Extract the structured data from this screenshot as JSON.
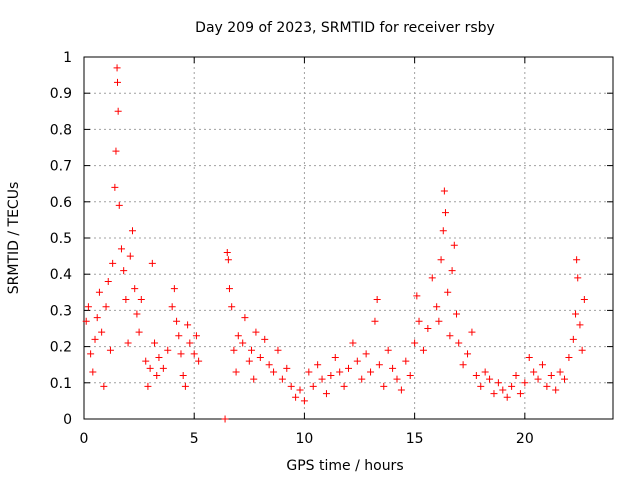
{
  "chart_data": {
    "type": "scatter",
    "title": "Day 209 of 2023, SRMTID for receiver rsby",
    "xlabel": "GPS time / hours",
    "ylabel": "SRMTID / TECUs",
    "xlim": [
      0,
      24
    ],
    "ylim": [
      0,
      1
    ],
    "xticks": [
      0,
      5,
      10,
      15,
      20
    ],
    "yticks": [
      0,
      0.1,
      0.2,
      0.3,
      0.4,
      0.5,
      0.6,
      0.7,
      0.8,
      0.9,
      1
    ],
    "xtick_labels": [
      "0",
      "5",
      "10",
      "15",
      "20"
    ],
    "ytick_labels": [
      "0",
      "0.1",
      "0.2",
      "0.3",
      "0.4",
      "0.5",
      "0.6",
      "0.7",
      "0.8",
      "0.9",
      "1"
    ],
    "grid": true,
    "marker": "plus",
    "color": "#ff0000",
    "points": [
      [
        0.1,
        0.27
      ],
      [
        0.2,
        0.31
      ],
      [
        0.3,
        0.18
      ],
      [
        0.4,
        0.13
      ],
      [
        0.5,
        0.22
      ],
      [
        0.6,
        0.28
      ],
      [
        0.7,
        0.35
      ],
      [
        0.8,
        0.24
      ],
      [
        0.9,
        0.09
      ],
      [
        1.0,
        0.31
      ],
      [
        1.1,
        0.38
      ],
      [
        1.2,
        0.19
      ],
      [
        1.3,
        0.43
      ],
      [
        1.4,
        0.64
      ],
      [
        1.45,
        0.74
      ],
      [
        1.5,
        0.97
      ],
      [
        1.52,
        0.93
      ],
      [
        1.55,
        0.85
      ],
      [
        1.6,
        0.59
      ],
      [
        1.7,
        0.47
      ],
      [
        1.8,
        0.41
      ],
      [
        1.9,
        0.33
      ],
      [
        2.0,
        0.21
      ],
      [
        2.1,
        0.45
      ],
      [
        2.2,
        0.52
      ],
      [
        2.3,
        0.36
      ],
      [
        2.4,
        0.29
      ],
      [
        2.5,
        0.24
      ],
      [
        2.6,
        0.33
      ],
      [
        2.8,
        0.16
      ],
      [
        2.9,
        0.09
      ],
      [
        3.0,
        0.14
      ],
      [
        3.1,
        0.43
      ],
      [
        3.2,
        0.21
      ],
      [
        3.3,
        0.12
      ],
      [
        3.4,
        0.17
      ],
      [
        3.6,
        0.14
      ],
      [
        3.8,
        0.19
      ],
      [
        4.0,
        0.31
      ],
      [
        4.1,
        0.36
      ],
      [
        4.2,
        0.27
      ],
      [
        4.3,
        0.23
      ],
      [
        4.4,
        0.18
      ],
      [
        4.5,
        0.12
      ],
      [
        4.6,
        0.09
      ],
      [
        4.7,
        0.26
      ],
      [
        4.8,
        0.21
      ],
      [
        5.0,
        0.18
      ],
      [
        5.1,
        0.23
      ],
      [
        5.2,
        0.16
      ],
      [
        6.4,
        0.0
      ],
      [
        6.5,
        0.46
      ],
      [
        6.55,
        0.44
      ],
      [
        6.6,
        0.36
      ],
      [
        6.7,
        0.31
      ],
      [
        6.8,
        0.19
      ],
      [
        6.9,
        0.13
      ],
      [
        7.0,
        0.23
      ],
      [
        7.2,
        0.21
      ],
      [
        7.3,
        0.28
      ],
      [
        7.5,
        0.16
      ],
      [
        7.6,
        0.19
      ],
      [
        7.7,
        0.11
      ],
      [
        7.8,
        0.24
      ],
      [
        8.0,
        0.17
      ],
      [
        8.2,
        0.22
      ],
      [
        8.4,
        0.15
      ],
      [
        8.6,
        0.13
      ],
      [
        8.8,
        0.19
      ],
      [
        9.0,
        0.11
      ],
      [
        9.2,
        0.14
      ],
      [
        9.4,
        0.09
      ],
      [
        9.6,
        0.06
      ],
      [
        9.8,
        0.08
      ],
      [
        10.0,
        0.05
      ],
      [
        10.2,
        0.13
      ],
      [
        10.4,
        0.09
      ],
      [
        10.6,
        0.15
      ],
      [
        10.8,
        0.11
      ],
      [
        11.0,
        0.07
      ],
      [
        11.2,
        0.12
      ],
      [
        11.4,
        0.17
      ],
      [
        11.6,
        0.13
      ],
      [
        11.8,
        0.09
      ],
      [
        12.0,
        0.14
      ],
      [
        12.2,
        0.21
      ],
      [
        12.4,
        0.16
      ],
      [
        12.6,
        0.11
      ],
      [
        12.8,
        0.18
      ],
      [
        13.0,
        0.13
      ],
      [
        13.2,
        0.27
      ],
      [
        13.3,
        0.33
      ],
      [
        13.4,
        0.15
      ],
      [
        13.6,
        0.09
      ],
      [
        13.8,
        0.19
      ],
      [
        14.0,
        0.14
      ],
      [
        14.2,
        0.11
      ],
      [
        14.4,
        0.08
      ],
      [
        14.6,
        0.16
      ],
      [
        14.8,
        0.12
      ],
      [
        15.0,
        0.21
      ],
      [
        15.1,
        0.34
      ],
      [
        15.2,
        0.27
      ],
      [
        15.4,
        0.19
      ],
      [
        15.6,
        0.25
      ],
      [
        15.8,
        0.39
      ],
      [
        16.0,
        0.31
      ],
      [
        16.1,
        0.27
      ],
      [
        16.2,
        0.44
      ],
      [
        16.3,
        0.52
      ],
      [
        16.35,
        0.63
      ],
      [
        16.4,
        0.57
      ],
      [
        16.5,
        0.35
      ],
      [
        16.6,
        0.23
      ],
      [
        16.7,
        0.41
      ],
      [
        16.8,
        0.48
      ],
      [
        16.9,
        0.29
      ],
      [
        17.0,
        0.21
      ],
      [
        17.2,
        0.15
      ],
      [
        17.4,
        0.18
      ],
      [
        17.6,
        0.24
      ],
      [
        17.8,
        0.12
      ],
      [
        18.0,
        0.09
      ],
      [
        18.2,
        0.13
      ],
      [
        18.4,
        0.11
      ],
      [
        18.6,
        0.07
      ],
      [
        18.8,
        0.1
      ],
      [
        19.0,
        0.08
      ],
      [
        19.2,
        0.06
      ],
      [
        19.4,
        0.09
      ],
      [
        19.6,
        0.12
      ],
      [
        19.8,
        0.07
      ],
      [
        20.0,
        0.1
      ],
      [
        20.2,
        0.17
      ],
      [
        20.4,
        0.13
      ],
      [
        20.6,
        0.11
      ],
      [
        20.8,
        0.15
      ],
      [
        21.0,
        0.09
      ],
      [
        21.2,
        0.12
      ],
      [
        21.4,
        0.08
      ],
      [
        21.6,
        0.13
      ],
      [
        21.8,
        0.11
      ],
      [
        22.0,
        0.17
      ],
      [
        22.2,
        0.22
      ],
      [
        22.3,
        0.29
      ],
      [
        22.35,
        0.44
      ],
      [
        22.4,
        0.39
      ],
      [
        22.5,
        0.26
      ],
      [
        22.6,
        0.19
      ],
      [
        22.7,
        0.33
      ]
    ]
  }
}
